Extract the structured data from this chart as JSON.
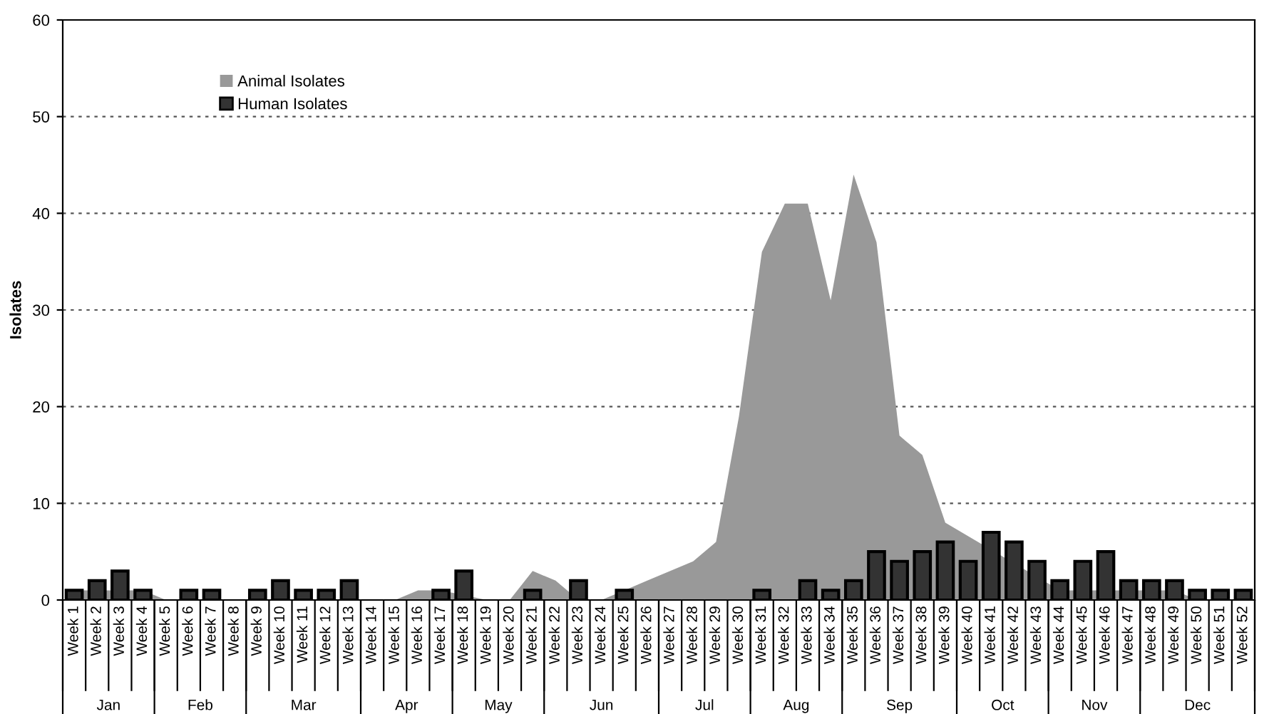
{
  "chart_data": {
    "type": "bar",
    "ylabel": "Isolates",
    "categories": [
      "Week 1",
      "Week 2",
      "Week 3",
      "Week 4",
      "Week 5",
      "Week 6",
      "Week 7",
      "Week 8",
      "Week 9",
      "Week 10",
      "Week 11",
      "Week 12",
      "Week 13",
      "Week 14",
      "Week 15",
      "Week 16",
      "Week 17",
      "Week 18",
      "Week 19",
      "Week 20",
      "Week 21",
      "Week 22",
      "Week 23",
      "Week 24",
      "Week 25",
      "Week 26",
      "Week 27",
      "Week 28",
      "Week 29",
      "Week 30",
      "Week 31",
      "Week 32",
      "Week 33",
      "Week 34",
      "Week 35",
      "Week 36",
      "Week 37",
      "Week 38",
      "Week 39",
      "Week 40",
      "Week 41",
      "Week 42",
      "Week 43",
      "Week 44",
      "Week 45",
      "Week 46",
      "Week 47",
      "Week 48",
      "Week 49",
      "Week 50",
      "Week 51",
      "Week 52"
    ],
    "series": [
      {
        "name": "Animal Isolates",
        "type": "area",
        "color": "#999999",
        "values": [
          1,
          1,
          null,
          1,
          0,
          0,
          0,
          0,
          0,
          0,
          0,
          0,
          0,
          0,
          0,
          1,
          1,
          null,
          0,
          0,
          3,
          2,
          0,
          0,
          1,
          2,
          3,
          4,
          6,
          19,
          36,
          41,
          41,
          31,
          44,
          37,
          17,
          15,
          8,
          null,
          null,
          null,
          null,
          1,
          null,
          null,
          1,
          1,
          1,
          0,
          0,
          0
        ]
      },
      {
        "name": "Human Isolates",
        "color": "#333333",
        "values": [
          1,
          2,
          3,
          1,
          0,
          1,
          1,
          0,
          1,
          2,
          1,
          1,
          2,
          0,
          0,
          0,
          1,
          3,
          0,
          0,
          1,
          0,
          2,
          0,
          1,
          0,
          0,
          0,
          0,
          0,
          1,
          0,
          2,
          1,
          2,
          5,
          4,
          5,
          6,
          4,
          7,
          6,
          4,
          2,
          4,
          5,
          2,
          2,
          2,
          1,
          1,
          1
        ]
      }
    ],
    "ylim": [
      0,
      60
    ],
    "yticks": [
      0,
      10,
      20,
      30,
      40,
      50,
      60
    ],
    "grid": "y",
    "legend": "top left",
    "annotations": [
      "Jan",
      "Feb",
      "Mar",
      "Apr",
      "May",
      "Jun",
      "Jul",
      "Aug",
      "Sep",
      "Oct",
      "Nov",
      "Dec"
    ]
  }
}
